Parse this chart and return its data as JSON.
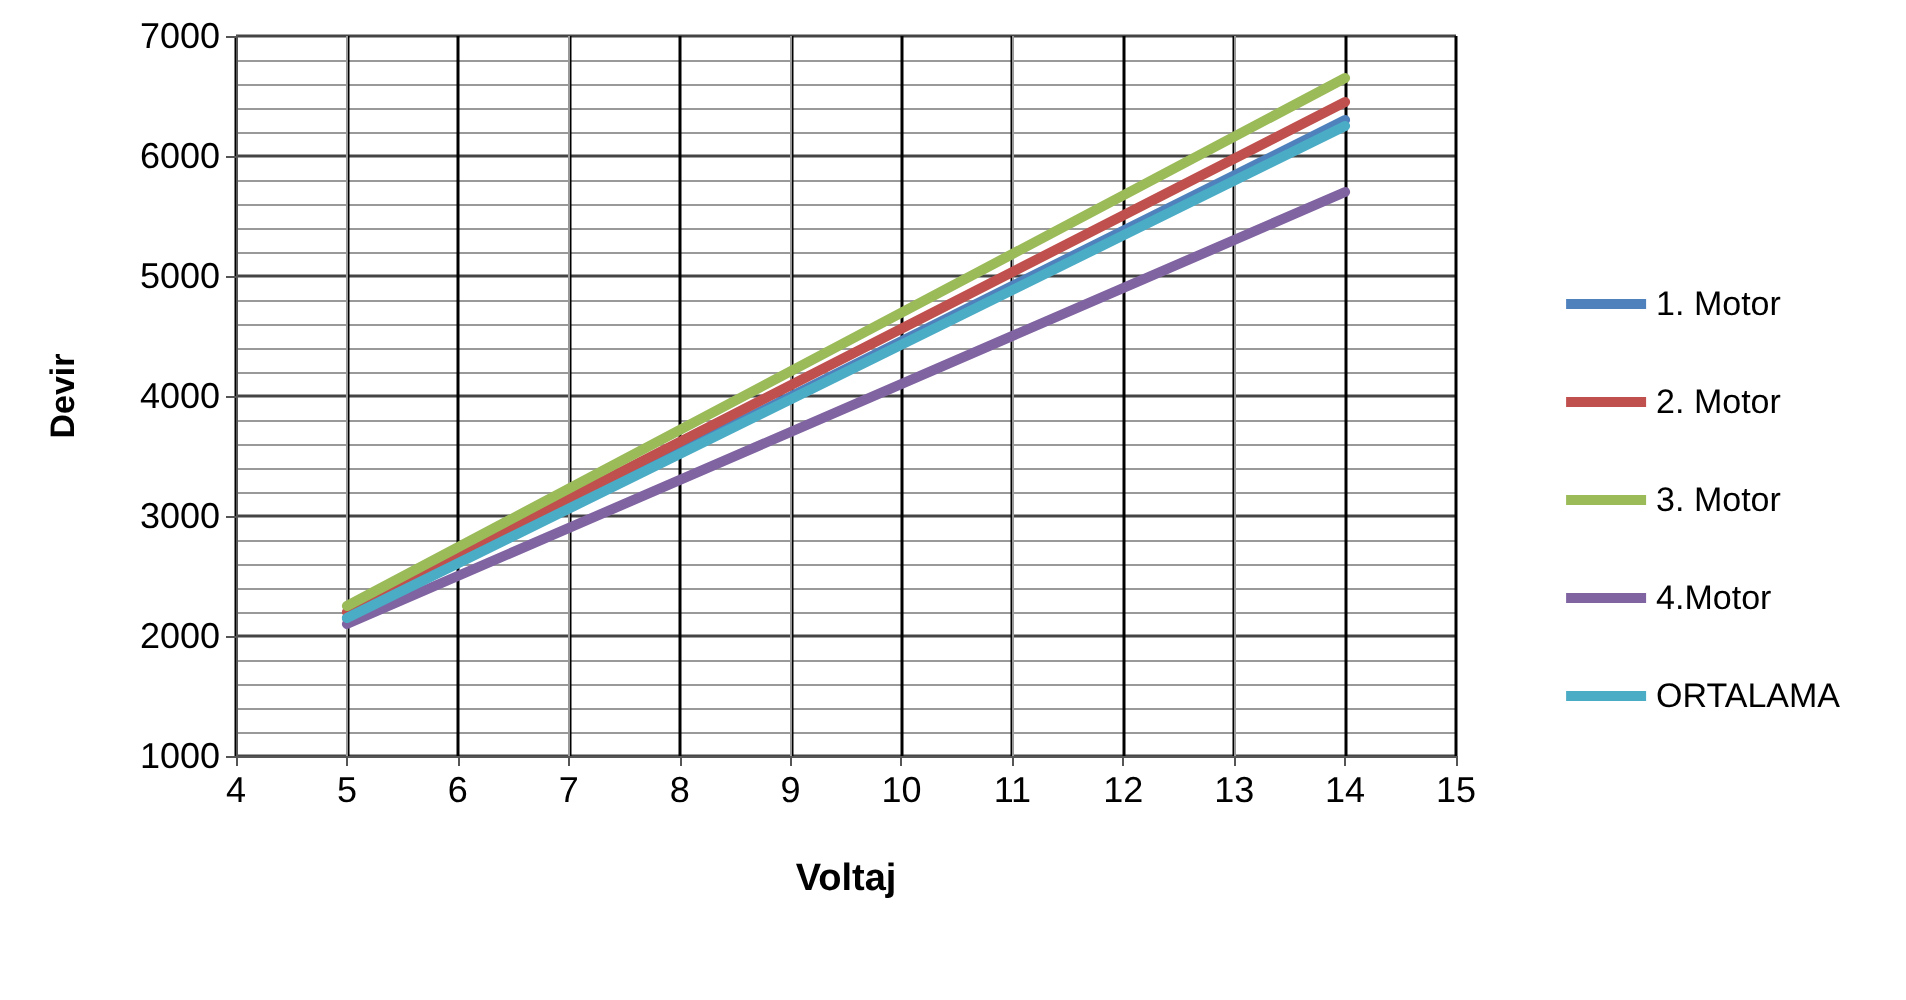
{
  "chart_data": {
    "type": "line",
    "xlabel": "Voltaj",
    "ylabel": "Devir",
    "x": [
      5,
      14
    ],
    "series": [
      {
        "name": "1. Motor",
        "color": "#4f81bd",
        "values": [
          2150,
          6300
        ]
      },
      {
        "name": "2. Motor",
        "color": "#c0504d",
        "values": [
          2200,
          6450
        ]
      },
      {
        "name": "3. Motor",
        "color": "#9bbb59",
        "values": [
          2250,
          6650
        ]
      },
      {
        "name": "4.Motor",
        "color": "#8064a2",
        "values": [
          2100,
          5700
        ]
      },
      {
        "name": "ORTALAMA",
        "color": "#4bacc6",
        "values": [
          2150,
          6250
        ]
      }
    ],
    "xlim": [
      4,
      15
    ],
    "xticks": [
      4,
      5,
      6,
      7,
      8,
      9,
      10,
      11,
      12,
      13,
      14,
      15
    ],
    "ylim": [
      1000,
      7000
    ],
    "yticks": [
      1000,
      2000,
      3000,
      4000,
      5000,
      6000,
      7000
    ],
    "grid": true,
    "legend": "right",
    "marker": "none",
    "line_style": "solid"
  }
}
